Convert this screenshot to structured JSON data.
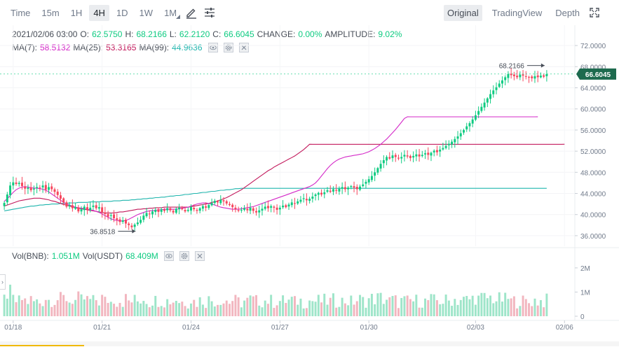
{
  "toolbar": {
    "time_label": "Time",
    "timeframes": [
      "15m",
      "1H",
      "4H",
      "1D",
      "1W",
      "1M"
    ],
    "active_timeframe": "4H",
    "views": [
      "Original",
      "TradingView",
      "Depth"
    ],
    "active_view": "Original"
  },
  "ohlc": {
    "date": "2021/02/06 03:00",
    "o_label": "O:",
    "open": "62.5750",
    "h_label": "H:",
    "high": "68.2166",
    "l_label": "L:",
    "low": "62.2120",
    "c_label": "C:",
    "close": "66.6045",
    "change_label": "CHANGE:",
    "change": "0.00%",
    "amplitude_label": "AMPLITUDE:",
    "amplitude": "9.02%"
  },
  "ma": {
    "ma7_label": "MA(7):",
    "ma7": "58.5132",
    "ma25_label": "MA(25):",
    "ma25": "53.3165",
    "ma99_label": "MA(99):",
    "ma99": "44.9636"
  },
  "vol": {
    "bnb_label": "Vol(BNB):",
    "bnb": "1.051M",
    "usdt_label": "Vol(USDT)",
    "usdt": "68.409M"
  },
  "colors": {
    "up": "#0ecb81",
    "down": "#f6465d",
    "ma7": "#d429c8",
    "ma25": "#c2185b",
    "ma99": "#1fb5ad",
    "vol_up": "#9ee5c9",
    "vol_down": "#f2b6bf"
  },
  "chart_data": {
    "type": "candlestick",
    "price_axis_ticks": [
      "72.0000",
      "68.0000",
      "64.0000",
      "60.0000",
      "56.0000",
      "52.0000",
      "48.0000",
      "44.0000",
      "40.0000",
      "36.0000"
    ],
    "price_axis_values": [
      72,
      68,
      64,
      60,
      56,
      52,
      48,
      44,
      40,
      36
    ],
    "volume_axis_ticks": [
      "2M",
      "1M",
      "0"
    ],
    "volume_axis_values": [
      2000000,
      1000000,
      0
    ],
    "x_tick_labels": [
      "01/18",
      "01/21",
      "01/24",
      "01/27",
      "01/30",
      "02/03",
      "02/06"
    ],
    "x_tick_index": [
      3,
      33,
      63,
      93,
      123,
      159,
      189
    ],
    "current_price_label": "66.6045",
    "high_marker": {
      "label": "68.2166",
      "index": 193,
      "value": 68.2166
    },
    "low_marker": {
      "label": "36.8518",
      "index": 45,
      "value": 36.8518
    },
    "series": [
      {
        "name": "",
        "closes": [
          42.2,
          43.8,
          45.5,
          46.1,
          45.8,
          46.0,
          45.4,
          44.9,
          45.1,
          44.6,
          44.9,
          45.2,
          45.0,
          45.5,
          44.7,
          45.2,
          44.8,
          44.3,
          43.7,
          43.0,
          42.3,
          41.5,
          41.8,
          41.2,
          41.4,
          40.6,
          41.0,
          41.5,
          40.9,
          41.3,
          41.7,
          41.2,
          41.4,
          40.5,
          40.1,
          39.6,
          39.9,
          39.3,
          39.0,
          38.6,
          38.9,
          38.3,
          38.0,
          37.6,
          38.1,
          38.5,
          39.0,
          39.8,
          40.3,
          40.1,
          40.6,
          40.9,
          40.5,
          41.0,
          40.7,
          41.2,
          40.8,
          40.4,
          41.1,
          41.3,
          41.0,
          40.6,
          40.9,
          41.4,
          41.0,
          40.7,
          41.2,
          41.6,
          41.3,
          41.8,
          42.2,
          42.6,
          42.3,
          42.8,
          42.5,
          42.1,
          41.8,
          41.4,
          41.0,
          40.7,
          40.9,
          41.2,
          40.8,
          41.3,
          40.7,
          40.4,
          40.8,
          41.1,
          41.5,
          41.2,
          41.6,
          41.3,
          40.9,
          41.3,
          41.7,
          41.4,
          41.9,
          42.3,
          42.1,
          42.5,
          42.8,
          43.1,
          42.7,
          43.0,
          43.4,
          43.8,
          44.1,
          43.8,
          44.2,
          44.6,
          44.3,
          44.8,
          44.5,
          44.9,
          45.2,
          44.8,
          45.1,
          45.4,
          45.1,
          44.8,
          45.3,
          45.7,
          46.2,
          46.7,
          47.3,
          48.0,
          48.8,
          49.6,
          50.3,
          50.9,
          50.6,
          51.2,
          50.9,
          50.6,
          50.9,
          51.3,
          51.0,
          50.7,
          51.1,
          51.4,
          51.0,
          51.3,
          51.6,
          51.3,
          51.7,
          52.1,
          51.8,
          52.3,
          52.6,
          53.0,
          53.4,
          53.8,
          54.3,
          54.8,
          55.4,
          56.0,
          56.7,
          57.3,
          58.0,
          58.8,
          59.6,
          60.4,
          61.2,
          62.0,
          62.8,
          63.5,
          64.1,
          64.8,
          65.4,
          66.0,
          66.6045,
          66.4,
          66.2,
          66.0,
          66.5,
          66.3,
          66.1,
          66.0,
          65.8,
          66.2,
          66.0,
          66.3,
          66.1,
          66.6045
        ],
        "ma7": [
          42.5,
          43.0,
          43.6,
          44.2,
          44.7,
          45.0,
          45.2,
          45.3,
          45.2,
          45.1,
          45.0,
          45.0,
          44.9,
          44.8,
          44.6,
          44.3,
          43.9,
          43.5,
          43.1,
          42.7,
          42.3,
          42.0,
          41.8,
          41.6,
          41.4,
          41.3,
          41.2,
          41.1,
          41.0,
          40.9,
          40.8,
          40.6,
          40.4,
          40.1,
          39.8,
          39.5,
          39.2,
          39.0,
          38.9,
          38.8,
          38.8,
          38.9,
          39.1,
          39.4,
          39.7,
          40.0,
          40.2,
          40.4,
          40.6,
          40.7,
          40.8,
          40.8,
          40.9,
          40.9,
          41.0,
          41.0,
          41.0,
          41.0,
          41.0,
          41.1,
          41.2,
          41.3,
          41.4,
          41.6,
          41.8,
          42.0,
          42.1,
          42.2,
          42.2,
          42.1,
          42.0,
          41.8,
          41.6,
          41.4,
          41.3,
          41.2,
          41.1,
          41.0,
          41.0,
          41.0,
          41.1,
          41.2,
          41.3,
          41.4,
          41.5,
          41.7,
          41.9,
          42.1,
          42.3,
          42.5,
          42.7,
          42.9,
          43.1,
          43.3,
          43.5,
          43.7,
          43.9,
          44.1,
          44.3,
          44.5,
          44.7,
          44.9,
          45.1,
          45.3,
          45.6,
          46.0,
          46.6,
          47.3,
          48.0,
          48.7,
          49.3,
          49.8,
          50.2,
          50.5,
          50.7,
          50.9,
          51.0,
          51.1,
          51.2,
          51.3,
          51.4,
          51.5,
          51.7,
          51.9,
          52.2,
          52.5,
          52.9,
          53.3,
          53.8,
          54.3,
          54.9,
          55.5,
          56.1,
          56.8,
          57.5,
          58.2,
          58.5132,
          58.5,
          58.5,
          58.5,
          58.5,
          58.5,
          58.5,
          58.5,
          58.5,
          58.5,
          58.5,
          58.5,
          58.5,
          58.5,
          58.5,
          58.5,
          58.5,
          58.5,
          58.5,
          58.5,
          58.5,
          58.5,
          58.5,
          58.5,
          58.5,
          58.5,
          58.5,
          58.5,
          58.5,
          58.5,
          58.5,
          58.5,
          58.5,
          58.5,
          58.5,
          58.5,
          58.5,
          58.5,
          58.5,
          58.5,
          58.5,
          58.5,
          58.5,
          58.5,
          58.5132
        ],
        "ma25": [
          41.6,
          41.8,
          42.0,
          42.2,
          42.4,
          42.6,
          42.7,
          42.8,
          42.9,
          43.0,
          43.1,
          43.1,
          43.1,
          43.0,
          42.9,
          42.8,
          42.6,
          42.5,
          42.3,
          42.1,
          41.9,
          41.8,
          41.6,
          41.5,
          41.3,
          41.2,
          41.1,
          41.0,
          40.9,
          40.8,
          40.7,
          40.6,
          40.5,
          40.4,
          40.3,
          40.3,
          40.3,
          40.3,
          40.4,
          40.5,
          40.5,
          40.6,
          40.7,
          40.8,
          40.9,
          41.0,
          41.0,
          41.1,
          41.1,
          41.2,
          41.2,
          41.3,
          41.3,
          41.3,
          41.4,
          41.4,
          41.4,
          41.4,
          41.4,
          41.4,
          41.4,
          41.4,
          41.4,
          41.5,
          41.6,
          41.7,
          41.8,
          41.9,
          42.0,
          42.1,
          42.3,
          42.4,
          42.6,
          42.8,
          43.0,
          43.2,
          43.5,
          43.8,
          44.1,
          44.4,
          44.7,
          45.1,
          45.5,
          45.9,
          46.3,
          46.7,
          47.1,
          47.5,
          47.9,
          48.3,
          48.6,
          49.0,
          49.3,
          49.6,
          49.9,
          50.2,
          50.5,
          50.8,
          51.1,
          51.5,
          51.9,
          52.3,
          52.8,
          53.3165,
          53.3,
          53.3,
          53.3,
          53.3,
          53.3,
          53.3,
          53.3,
          53.3,
          53.3,
          53.3,
          53.3,
          53.3,
          53.3,
          53.3,
          53.3,
          53.3,
          53.3,
          53.3,
          53.3,
          53.3,
          53.3,
          53.3,
          53.3,
          53.3,
          53.3,
          53.3,
          53.3,
          53.3,
          53.3,
          53.3,
          53.3,
          53.3,
          53.3,
          53.3,
          53.3,
          53.3,
          53.3,
          53.3,
          53.3,
          53.3,
          53.3,
          53.3,
          53.3,
          53.3,
          53.3,
          53.3,
          53.3,
          53.3,
          53.3,
          53.3,
          53.3,
          53.3,
          53.3,
          53.3,
          53.3,
          53.3,
          53.3,
          53.3,
          53.3,
          53.3,
          53.3,
          53.3,
          53.3,
          53.3,
          53.3,
          53.3,
          53.3,
          53.3,
          53.3,
          53.3,
          53.3,
          53.3,
          53.3,
          53.3,
          53.3,
          53.3,
          53.3,
          53.3,
          53.3,
          53.3,
          53.3,
          53.3,
          53.3,
          53.3,
          53.3,
          53.3165
        ],
        "ma99": [
          40.7,
          40.8,
          40.9,
          41.0,
          41.1,
          41.2,
          41.3,
          41.4,
          41.5,
          41.6,
          41.6,
          41.7,
          41.8,
          41.8,
          41.9,
          41.9,
          42.0,
          42.0,
          42.0,
          42.1,
          42.1,
          42.1,
          42.2,
          42.2,
          42.2,
          42.3,
          42.3,
          42.3,
          42.3,
          42.4,
          42.4,
          42.4,
          42.4,
          42.5,
          42.5,
          42.5,
          42.5,
          42.6,
          42.6,
          42.6,
          42.7,
          42.7,
          42.7,
          42.8,
          42.8,
          42.9,
          42.9,
          43.0,
          43.0,
          43.1,
          43.1,
          43.2,
          43.2,
          43.3,
          43.3,
          43.4,
          43.5,
          43.5,
          43.6,
          43.6,
          43.7,
          43.8,
          43.8,
          43.9,
          44.0,
          44.0,
          44.1,
          44.2,
          44.2,
          44.3,
          44.4,
          44.4,
          44.5,
          44.6,
          44.6,
          44.7,
          44.7,
          44.8,
          44.9,
          44.9,
          44.9636,
          44.9636,
          44.9636,
          44.9636,
          44.9636,
          44.9636,
          44.9636,
          44.9636,
          44.9636,
          44.9636,
          44.9636,
          44.9636,
          44.9636,
          44.9636,
          44.9636,
          44.9636,
          44.9636,
          44.9636,
          44.9636,
          44.9636,
          44.9636,
          44.9636,
          44.9636,
          44.9636,
          44.9636,
          44.9636,
          44.9636,
          44.9636,
          44.9636,
          44.9636,
          44.9636,
          44.9636,
          44.9636,
          44.9636,
          44.9636,
          44.9636,
          44.9636,
          44.9636,
          44.9636,
          44.9636,
          44.9636,
          44.9636,
          44.9636,
          44.9636,
          44.9636,
          44.9636,
          44.9636,
          44.9636,
          44.9636,
          44.9636,
          44.9636,
          44.9636,
          44.9636,
          44.9636,
          44.9636,
          44.9636,
          44.9636,
          44.9636,
          44.9636,
          44.9636,
          44.9636,
          44.9636,
          44.9636,
          44.9636,
          44.9636,
          44.9636,
          44.9636,
          44.9636,
          44.9636,
          44.9636,
          44.9636,
          44.9636,
          44.9636,
          44.9636,
          44.9636,
          44.9636,
          44.9636,
          44.9636,
          44.9636,
          44.9636,
          44.9636,
          44.9636,
          44.9636,
          44.9636,
          44.9636,
          44.9636,
          44.9636,
          44.9636,
          44.9636,
          44.9636,
          44.9636,
          44.9636,
          44.9636,
          44.9636,
          44.9636,
          44.9636,
          44.9636,
          44.9636,
          44.9636,
          44.9636,
          44.9636,
          44.9636,
          44.9636,
          44.9636
        ]
      }
    ]
  }
}
